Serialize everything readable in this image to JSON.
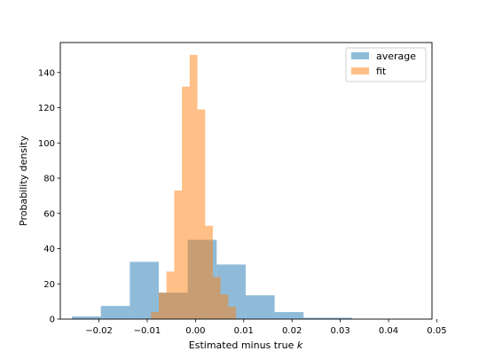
{
  "chart_data": {
    "type": "bar",
    "xlabel_text": "Estimated minus true ",
    "xlabel_var": "k",
    "ylabel": "Probability density",
    "xlim": [
      -0.028,
      0.049
    ],
    "ylim": [
      0,
      157
    ],
    "xticks": [
      -0.02,
      -0.01,
      0.0,
      0.01,
      0.02,
      0.03,
      0.04,
      0.05
    ],
    "xtick_labels": [
      "−0.02",
      "−0.01",
      "0.00",
      "0.01",
      "0.02",
      "0.03",
      "0.04",
      "0.05"
    ],
    "yticks": [
      0,
      20,
      40,
      60,
      80,
      100,
      120,
      140
    ],
    "ytick_labels": [
      "0",
      "20",
      "40",
      "60",
      "80",
      "100",
      "120",
      "140"
    ],
    "grid": false,
    "legend_position": "top-right",
    "series": [
      {
        "name": "average",
        "color": "#1f77b4",
        "alpha": 0.5,
        "bins": [
          {
            "x0": -0.0256,
            "x1": -0.0196,
            "value": 1.5
          },
          {
            "x0": -0.0196,
            "x1": -0.0136,
            "value": 7.5
          },
          {
            "x0": -0.0136,
            "x1": -0.0076,
            "value": 32.5
          },
          {
            "x0": -0.0076,
            "x1": -0.0016,
            "value": 15
          },
          {
            "x0": -0.0016,
            "x1": 0.0044,
            "value": 45
          },
          {
            "x0": 0.0044,
            "x1": 0.0104,
            "value": 31
          },
          {
            "x0": 0.0104,
            "x1": 0.0164,
            "value": 13.5
          },
          {
            "x0": 0.0164,
            "x1": 0.0224,
            "value": 4
          },
          {
            "x0": 0.0224,
            "x1": 0.0284,
            "value": 0.8
          },
          {
            "x0": 0.0284,
            "x1": 0.0324,
            "value": 0.8
          }
        ]
      },
      {
        "name": "fit",
        "color": "#ff7f0e",
        "alpha": 0.5,
        "bins": [
          {
            "x0": -0.0092,
            "x1": -0.0076,
            "value": 4
          },
          {
            "x0": -0.0076,
            "x1": -0.006,
            "value": 15
          },
          {
            "x0": -0.006,
            "x1": -0.0044,
            "value": 27
          },
          {
            "x0": -0.0044,
            "x1": -0.0028,
            "value": 73
          },
          {
            "x0": -0.0028,
            "x1": -0.0012,
            "value": 132
          },
          {
            "x0": -0.0012,
            "x1": 0.0004,
            "value": 150
          },
          {
            "x0": 0.0004,
            "x1": 0.002,
            "value": 119
          },
          {
            "x0": 0.002,
            "x1": 0.0036,
            "value": 53
          },
          {
            "x0": 0.0036,
            "x1": 0.0052,
            "value": 24
          },
          {
            "x0": 0.0052,
            "x1": 0.0068,
            "value": 14
          },
          {
            "x0": 0.0068,
            "x1": 0.0084,
            "value": 7
          }
        ]
      }
    ]
  }
}
